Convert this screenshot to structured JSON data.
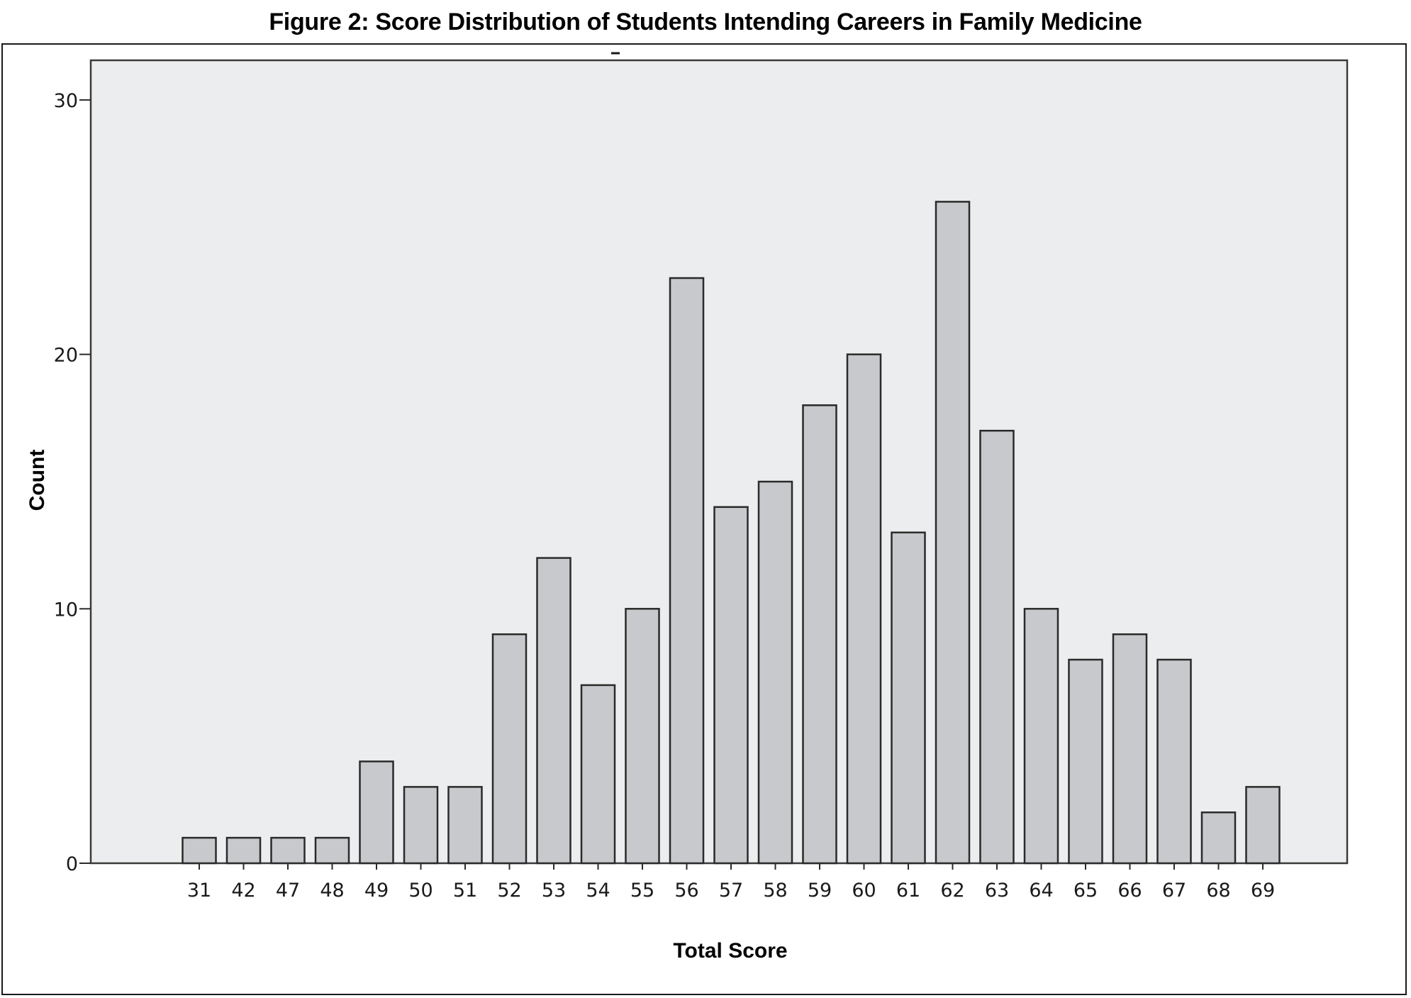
{
  "figure": {
    "title": "Figure 2: Score Distribution of Students Intending Careers in Family Medicine"
  },
  "chart_data": {
    "type": "bar",
    "title": "Figure 2: Score Distribution of Students Intending Careers in Family Medicine",
    "xlabel": "Total Score",
    "ylabel": "Count",
    "categories": [
      "31",
      "42",
      "47",
      "48",
      "49",
      "50",
      "51",
      "52",
      "53",
      "54",
      "55",
      "56",
      "57",
      "58",
      "59",
      "60",
      "61",
      "62",
      "63",
      "64",
      "65",
      "66",
      "67",
      "68",
      "69"
    ],
    "values": [
      1,
      1,
      1,
      1,
      4,
      3,
      3,
      9,
      12,
      7,
      10,
      23,
      14,
      15,
      18,
      20,
      13,
      26,
      17,
      10,
      8,
      9,
      8,
      2,
      3
    ],
    "ylim": [
      0,
      31.7
    ],
    "yticks": [
      0,
      10,
      20,
      30
    ],
    "grid": false,
    "legend": "none",
    "colors": {
      "bar_fill": "#c8c9cc",
      "bar_stroke": "#2a2a2a",
      "plot_background": "#ecedee"
    }
  }
}
